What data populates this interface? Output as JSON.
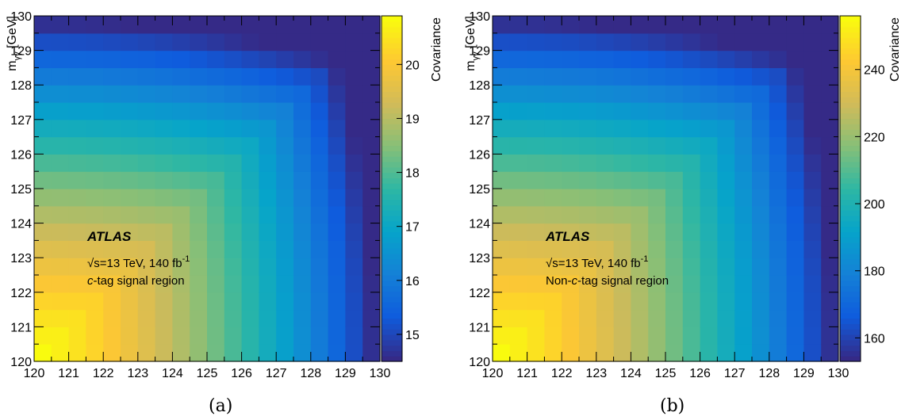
{
  "panels": [
    {
      "label": "(a)",
      "atlas": "ATLAS",
      "energy": {
        "sqrt": "√s",
        "rest": "=13 TeV, 140 fb",
        "sup": "-1"
      },
      "region": {
        "italic": "c",
        "rest": "-tag signal region"
      },
      "colorbar_title": "Covariance",
      "xlabel": {
        "main": "m",
        "sub": "γγ",
        "unit": " [GeV]"
      },
      "ylabel": {
        "main": "m",
        "sub": "γγ",
        "unit": " [GeV]"
      },
      "x_ticks": [
        "120",
        "121",
        "122",
        "123",
        "124",
        "125",
        "126",
        "127",
        "128",
        "129",
        "130"
      ],
      "y_ticks": [
        "120",
        "121",
        "122",
        "123",
        "124",
        "125",
        "126",
        "127",
        "128",
        "129",
        "130"
      ],
      "colorbar_ticks": [
        15,
        16,
        17,
        18,
        19,
        20
      ]
    },
    {
      "label": "(b)",
      "atlas": "ATLAS",
      "energy": {
        "sqrt": "√s",
        "rest": "=13 TeV, 140 fb",
        "sup": "-1"
      },
      "region": {
        "pre": "Non-",
        "italic": "c",
        "rest": "-tag signal region"
      },
      "colorbar_title": "Covariance",
      "xlabel": {
        "main": "m",
        "sub": "γγ",
        "unit": " [GeV]"
      },
      "ylabel": {
        "main": "m",
        "sub": "γγ",
        "unit": " [GeV]"
      },
      "x_ticks": [
        "120",
        "121",
        "122",
        "123",
        "124",
        "125",
        "126",
        "127",
        "128",
        "129",
        "130"
      ],
      "y_ticks": [
        "120",
        "121",
        "122",
        "123",
        "124",
        "125",
        "126",
        "127",
        "128",
        "129",
        "130"
      ],
      "colorbar_ticks": [
        160,
        180,
        200,
        220,
        240
      ]
    }
  ],
  "chart_data": [
    {
      "type": "heatmap",
      "x_range": [
        120,
        130
      ],
      "y_range": [
        120,
        130
      ],
      "bins": 20,
      "z_range": [
        14.5,
        20.9
      ],
      "colorscale": [
        "#352a87",
        "#0f5cdd",
        "#1481d6",
        "#06a4ca",
        "#2eb7a4",
        "#87bf77",
        "#d1bb59",
        "#fec832",
        "#f9fb0e"
      ],
      "z_center_max": 20.9,
      "z_corner_min": 14.6,
      "note_shape": "covariance decreases from the (120,120) corner outward along max(Δx,Δy)"
    },
    {
      "type": "heatmap",
      "x_range": [
        120,
        130
      ],
      "y_range": [
        120,
        130
      ],
      "bins": 20,
      "z_range": [
        153,
        256
      ],
      "colorscale": [
        "#352a87",
        "#0f5cdd",
        "#1481d6",
        "#06a4ca",
        "#2eb7a4",
        "#87bf77",
        "#d1bb59",
        "#fec832",
        "#f9fb0e"
      ],
      "z_center_max": 256,
      "z_corner_min": 155,
      "note_shape": "covariance decreases from the (120,120) corner outward along max(Δx,Δy)"
    }
  ]
}
